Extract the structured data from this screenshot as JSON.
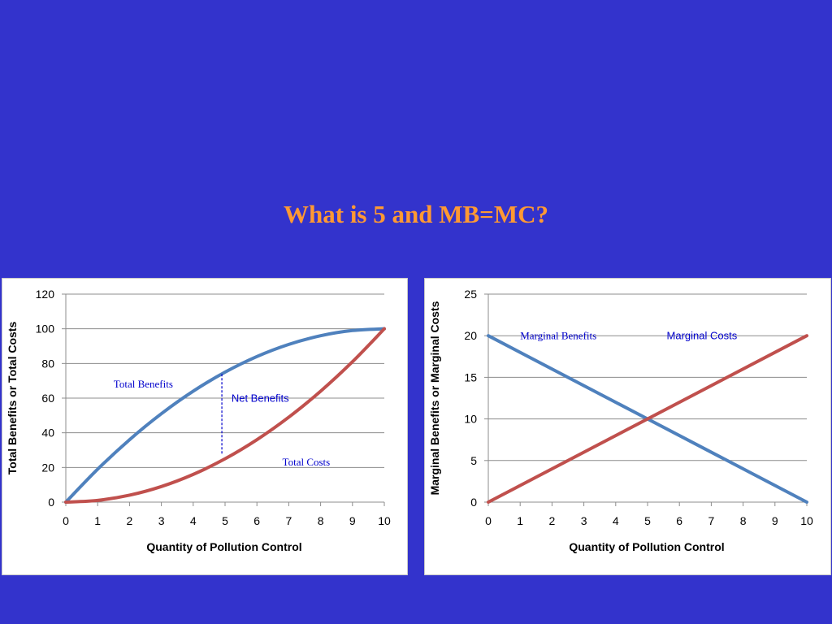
{
  "title": "What is 5 and MB=MC?",
  "colors": {
    "background": "#3333cc",
    "title": "#ff9933",
    "benefits": "#4f81bd",
    "costs": "#c0504d",
    "annotation": "#0000cc"
  },
  "chart_data": [
    {
      "type": "line",
      "xlabel": "Quantity of Pollution Control",
      "ylabel": "Total Benefits or Total Costs",
      "xlim": [
        0,
        10
      ],
      "ylim": [
        0,
        120
      ],
      "x_ticks": [
        0,
        1,
        2,
        3,
        4,
        5,
        6,
        7,
        8,
        9,
        10
      ],
      "y_ticks": [
        0,
        20,
        40,
        60,
        80,
        100,
        120
      ],
      "grid": true,
      "legend": "none",
      "series": [
        {
          "name": "Total Benefits",
          "color": "#4f81bd",
          "x": [
            0,
            1,
            2,
            3,
            4,
            5,
            6,
            7,
            8,
            9,
            10
          ],
          "y": [
            0,
            19,
            36,
            51,
            64,
            75,
            84,
            91,
            96,
            99,
            100
          ]
        },
        {
          "name": "Total Costs",
          "color": "#c0504d",
          "x": [
            0,
            1,
            2,
            3,
            4,
            5,
            6,
            7,
            8,
            9,
            10
          ],
          "y": [
            0,
            1,
            4,
            9,
            16,
            25,
            36,
            49,
            64,
            81,
            100
          ]
        }
      ],
      "annotations": [
        {
          "text": "Total Benefits",
          "x": 1.5,
          "y": 66,
          "style": "serif"
        },
        {
          "text": "Net Benefits",
          "x": 5.2,
          "y": 58,
          "style": "sans"
        },
        {
          "text": "Total Costs",
          "x": 6.8,
          "y": 21,
          "style": "serif"
        }
      ],
      "net_line": {
        "x": 4.9,
        "y_from": 28,
        "y_to": 74
      }
    },
    {
      "type": "line",
      "xlabel": "Quantity of Pollution Control",
      "ylabel": "Marginal Benefits or Marginal Costs",
      "xlim": [
        0,
        10
      ],
      "ylim": [
        0,
        25
      ],
      "x_ticks": [
        0,
        1,
        2,
        3,
        4,
        5,
        6,
        7,
        8,
        9,
        10
      ],
      "y_ticks": [
        0,
        5,
        10,
        15,
        20,
        25
      ],
      "grid": true,
      "legend": "none",
      "series": [
        {
          "name": "Marginal Benefits",
          "color": "#4f81bd",
          "x": [
            0,
            10
          ],
          "y": [
            20,
            0
          ]
        },
        {
          "name": "Marginal Costs",
          "color": "#c0504d",
          "x": [
            0,
            10
          ],
          "y": [
            0,
            20
          ]
        }
      ],
      "annotations": [
        {
          "text": "Marginal Benefits",
          "x": 1.0,
          "y": 19.6,
          "style": "serif"
        },
        {
          "text": "Marginal Costs",
          "x": 5.6,
          "y": 19.6,
          "style": "sans"
        }
      ]
    }
  ]
}
